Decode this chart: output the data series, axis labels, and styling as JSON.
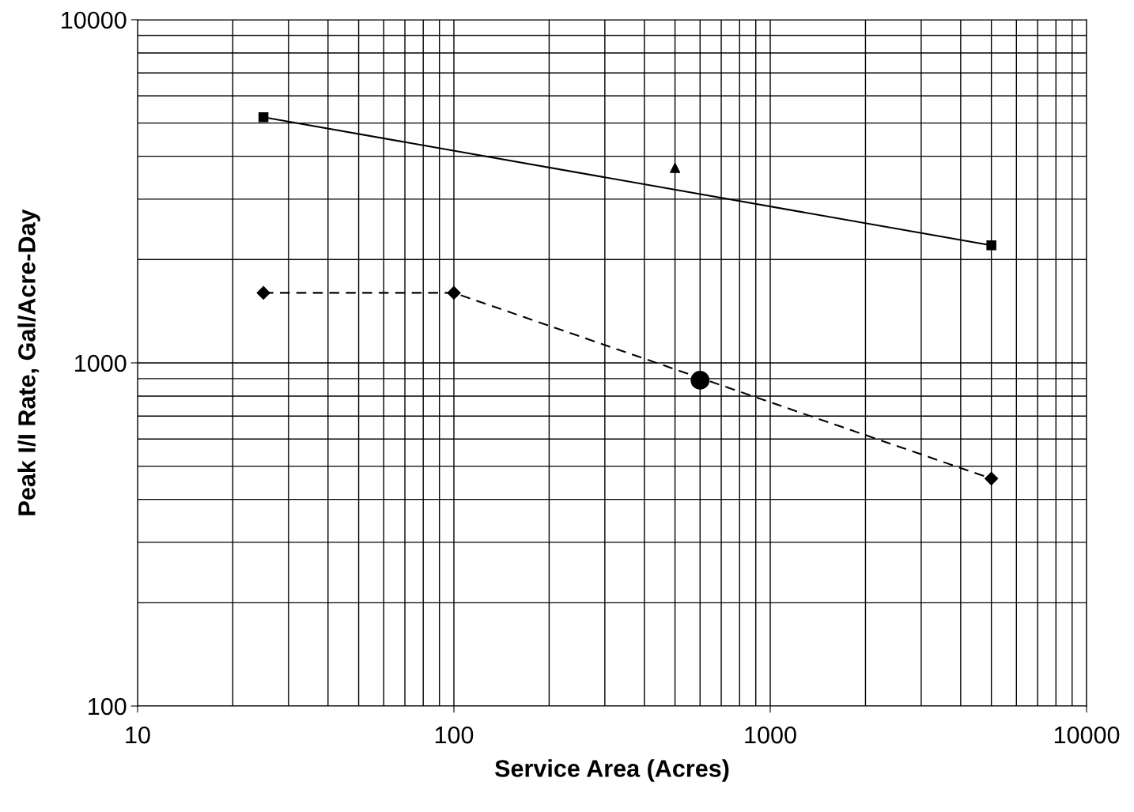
{
  "chart_data": {
    "type": "line",
    "xlabel": "Service Area (Acres)",
    "ylabel": "Peak I/I Rate, Gal/Acre-Day",
    "log": "xy",
    "xlim": [
      10,
      10000
    ],
    "ylim": [
      100,
      10000
    ],
    "xticks": [
      10,
      100,
      1000,
      10000
    ],
    "yticks": [
      100,
      1000,
      10000
    ],
    "grid": true,
    "series": [
      {
        "color": "#000000",
        "marker": "square",
        "line_style": "solid",
        "x": [
          25,
          5000
        ],
        "values": [
          5200,
          2200
        ]
      },
      {
        "color": "#000000",
        "marker": "diamond",
        "line_style": "dashed",
        "x": [
          25,
          100,
          5000
        ],
        "values": [
          1600,
          1600,
          460
        ]
      },
      {
        "type": "scatter",
        "color": "#000000",
        "marker": "triangle",
        "x": [
          500
        ],
        "values": [
          3700
        ]
      },
      {
        "type": "scatter",
        "color": "#000000",
        "marker": "circle",
        "x": [
          600
        ],
        "values": [
          890
        ]
      }
    ]
  }
}
